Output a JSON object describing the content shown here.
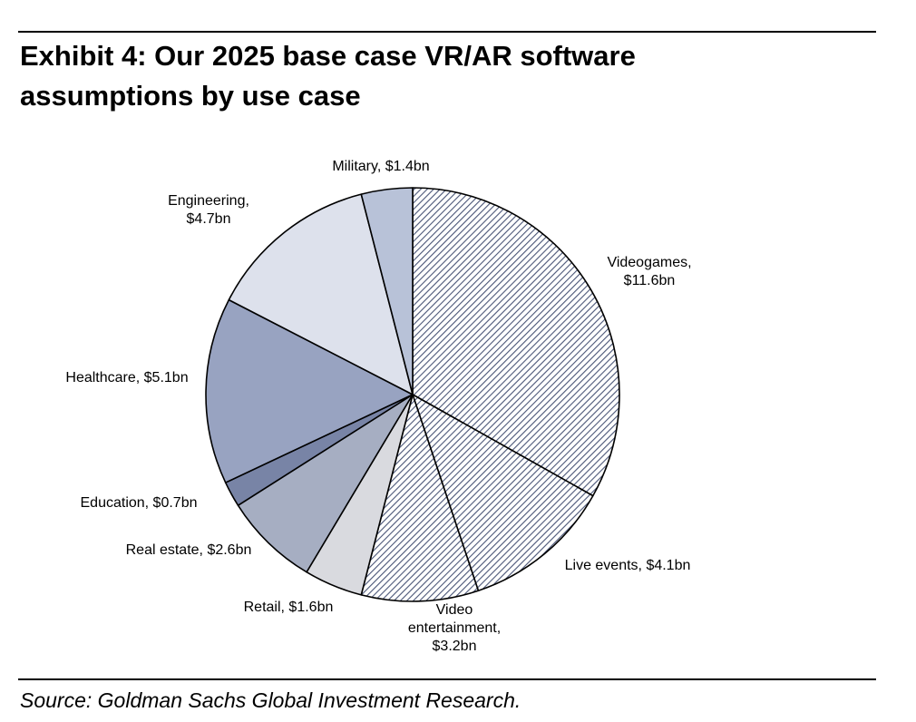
{
  "header": {
    "title_line1": "Exhibit 4: Our 2025 base case VR/AR software",
    "title_line2": "assumptions by use case"
  },
  "footer": {
    "source": "Source: Goldman Sachs Global Investment Research."
  },
  "chart_data": {
    "type": "pie",
    "title": "Exhibit 4: Our 2025 base case VR/AR software assumptions by use case",
    "unit": "$bn",
    "start": "12 o'clock",
    "direction": "clockwise",
    "slices": [
      {
        "name": "Videogames",
        "value": 11.6,
        "label_lines": [
          "Videogames,",
          "$11.6bn"
        ],
        "fill": "hatch",
        "color": "#3c4a6e"
      },
      {
        "name": "Live events",
        "value": 4.1,
        "label_lines": [
          "Live events, $4.1bn"
        ],
        "fill": "hatch",
        "color": "#3c4a6e"
      },
      {
        "name": "Video entertainment",
        "value": 3.2,
        "label_lines": [
          "Video",
          "entertainment,",
          "$3.2bn"
        ],
        "fill": "hatch",
        "color": "#3c4a6e"
      },
      {
        "name": "Retail",
        "value": 1.6,
        "label_lines": [
          "Retail, $1.6bn"
        ],
        "fill": "solid",
        "color": "#d9dadf"
      },
      {
        "name": "Real estate",
        "value": 2.6,
        "label_lines": [
          "Real estate, $2.6bn"
        ],
        "fill": "solid",
        "color": "#a6aec2"
      },
      {
        "name": "Education",
        "value": 0.7,
        "label_lines": [
          "Education, $0.7bn"
        ],
        "fill": "solid",
        "color": "#7884a6"
      },
      {
        "name": "Healthcare",
        "value": 5.1,
        "label_lines": [
          "Healthcare, $5.1bn"
        ],
        "fill": "solid",
        "color": "#98a3c1"
      },
      {
        "name": "Engineering",
        "value": 4.7,
        "label_lines": [
          "Engineering,",
          "$4.7bn"
        ],
        "fill": "solid",
        "color": "#dde1ec"
      },
      {
        "name": "Military",
        "value": 1.4,
        "label_lines": [
          "Military, $1.4bn"
        ],
        "fill": "solid",
        "color": "#b8c2d8"
      }
    ]
  }
}
